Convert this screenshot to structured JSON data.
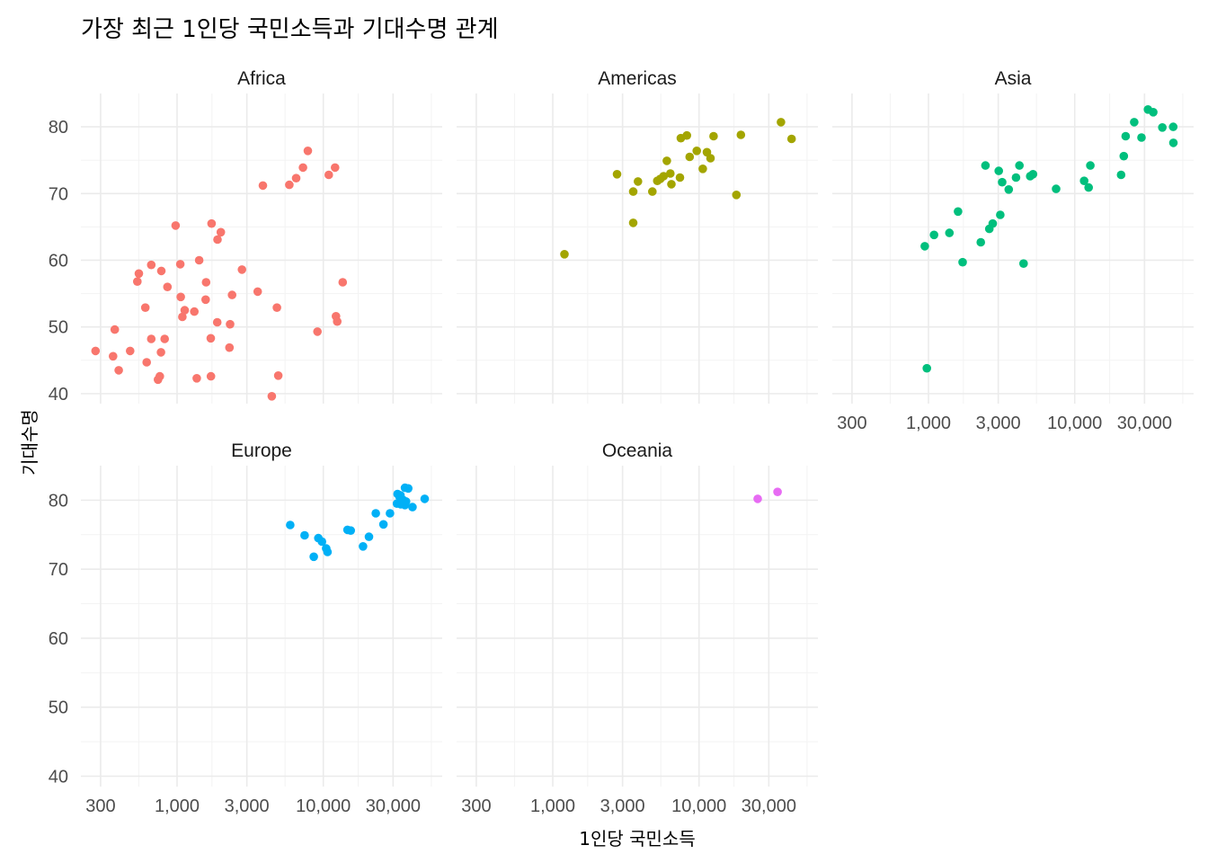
{
  "chart_data": {
    "type": "scatter",
    "title": "가장 최근 1인당 국민소득과 기대수명 관계",
    "xlabel": "1인당 국민소득",
    "ylabel": "기대수명",
    "x_scale": "log10",
    "xlim": [
      220,
      65000
    ],
    "ylim": [
      38.5,
      85
    ],
    "x_ticks": [
      300,
      1000,
      3000,
      10000,
      30000
    ],
    "x_tick_labels": [
      "300",
      "1,000",
      "3,000",
      "10,000",
      "30,000"
    ],
    "y_ticks": [
      40,
      50,
      60,
      70,
      80
    ],
    "y_tick_labels": [
      "40",
      "50",
      "60",
      "70",
      "80"
    ],
    "grid": true,
    "legend": "none",
    "panels": [
      {
        "name": "Africa",
        "color": "#F8766D",
        "points": [
          [
            277,
            46.4
          ],
          [
            365,
            45.6
          ],
          [
            375,
            49.6
          ],
          [
            399,
            43.5
          ],
          [
            478,
            46.4
          ],
          [
            535,
            56.8
          ],
          [
            548,
            58.0
          ],
          [
            607,
            52.9
          ],
          [
            620,
            44.7
          ],
          [
            666,
            59.3
          ],
          [
            666,
            48.2
          ],
          [
            741,
            42.1
          ],
          [
            762,
            42.6
          ],
          [
            776,
            46.2
          ],
          [
            781,
            58.4
          ],
          [
            823,
            48.2
          ],
          [
            860,
            56.0
          ],
          [
            978,
            65.2
          ],
          [
            1052,
            59.4
          ],
          [
            1060,
            54.5
          ],
          [
            1087,
            51.5
          ],
          [
            1127,
            52.5
          ],
          [
            1312,
            52.3
          ],
          [
            1363,
            42.3
          ],
          [
            1417,
            60.0
          ],
          [
            1569,
            54.1
          ],
          [
            1580,
            56.7
          ],
          [
            1700,
            48.3
          ],
          [
            1704,
            42.6
          ],
          [
            1722,
            65.5
          ],
          [
            1881,
            50.7
          ],
          [
            1889,
            63.1
          ],
          [
            1991,
            64.2
          ],
          [
            2283,
            46.9
          ],
          [
            2304,
            50.4
          ],
          [
            2379,
            54.8
          ],
          [
            2777,
            58.6
          ],
          [
            3560,
            55.3
          ],
          [
            3865,
            71.2
          ],
          [
            4445,
            39.6
          ],
          [
            4820,
            52.9
          ],
          [
            4921,
            42.7
          ],
          [
            5852,
            71.3
          ],
          [
            6519,
            72.3
          ],
          [
            7259,
            73.9
          ],
          [
            7839,
            76.4
          ],
          [
            9118,
            49.3
          ],
          [
            10900,
            72.8
          ],
          [
            12033,
            73.9
          ],
          [
            12213,
            51.6
          ],
          [
            12451,
            50.8
          ],
          [
            13579,
            56.7
          ]
        ]
      },
      {
        "name": "Americas",
        "color": "#A3A500",
        "points": [
          [
            1202,
            60.9
          ],
          [
            2749,
            72.9
          ],
          [
            3548,
            70.3
          ],
          [
            3549,
            65.6
          ],
          [
            3822,
            71.8
          ],
          [
            4797,
            70.3
          ],
          [
            5186,
            71.9
          ],
          [
            5432,
            72.2
          ],
          [
            5728,
            72.6
          ],
          [
            6025,
            74.9
          ],
          [
            6365,
            73.0
          ],
          [
            6474,
            71.4
          ],
          [
            7409,
            72.4
          ],
          [
            7507,
            78.3
          ],
          [
            8255,
            78.7
          ],
          [
            8626,
            75.5
          ],
          [
            9645,
            76.4
          ],
          [
            10611,
            73.7
          ],
          [
            11324,
            76.2
          ],
          [
            11978,
            75.3
          ],
          [
            12569,
            78.6
          ],
          [
            18008,
            69.8
          ],
          [
            19329,
            78.8
          ],
          [
            36319,
            80.7
          ],
          [
            42952,
            78.2
          ]
        ]
      },
      {
        "name": "Asia",
        "color": "#00BF7D",
        "points": [
          [
            944,
            62.1
          ],
          [
            975,
            43.8
          ],
          [
            1091,
            63.8
          ],
          [
            1391,
            64.1
          ],
          [
            1593,
            67.3
          ],
          [
            1713,
            59.7
          ],
          [
            2280,
            62.7
          ],
          [
            2452,
            74.2
          ],
          [
            2606,
            64.7
          ],
          [
            2749,
            65.5
          ],
          [
            3025,
            73.4
          ],
          [
            3096,
            66.8
          ],
          [
            3190,
            71.7
          ],
          [
            3540,
            70.6
          ],
          [
            3970,
            72.4
          ],
          [
            4185,
            74.2
          ],
          [
            4471,
            59.5
          ],
          [
            4959,
            72.6
          ],
          [
            5188,
            72.9
          ],
          [
            7458,
            70.7
          ],
          [
            11606,
            71.9
          ],
          [
            12452,
            70.9
          ],
          [
            12779,
            74.2
          ],
          [
            20741,
            72.8
          ],
          [
            21655,
            75.6
          ],
          [
            22316,
            78.6
          ],
          [
            25523,
            80.7
          ],
          [
            28605,
            78.4
          ],
          [
            31657,
            82.6
          ],
          [
            34435,
            82.2
          ],
          [
            39725,
            79.9
          ],
          [
            47143,
            80.0
          ],
          [
            47307,
            77.6
          ]
        ]
      },
      {
        "name": "Europe",
        "color": "#00B0F6",
        "points": [
          [
            5937,
            76.4
          ],
          [
            7446,
            74.9
          ],
          [
            8605,
            71.8
          ],
          [
            9253,
            74.5
          ],
          [
            9786,
            74.0
          ],
          [
            10461,
            73.0
          ],
          [
            10681,
            72.5
          ],
          [
            14619,
            75.7
          ],
          [
            15390,
            75.6
          ],
          [
            18678,
            73.3
          ],
          [
            20510,
            74.7
          ],
          [
            22833,
            78.1
          ],
          [
            25768,
            76.5
          ],
          [
            28570,
            78.1
          ],
          [
            31922,
            79.5
          ],
          [
            32170,
            80.9
          ],
          [
            33208,
            80.5
          ],
          [
            33692,
            80.7
          ],
          [
            33860,
            79.4
          ],
          [
            35278,
            80.0
          ],
          [
            36126,
            79.3
          ],
          [
            36181,
            81.8
          ],
          [
            36798,
            79.8
          ],
          [
            38057,
            81.7
          ],
          [
            40676,
            79.0
          ],
          [
            49357,
            80.2
          ]
        ]
      },
      {
        "name": "Oceania",
        "color": "#E76BF3",
        "points": [
          [
            25185,
            80.2
          ],
          [
            34435,
            81.2
          ]
        ]
      }
    ]
  }
}
